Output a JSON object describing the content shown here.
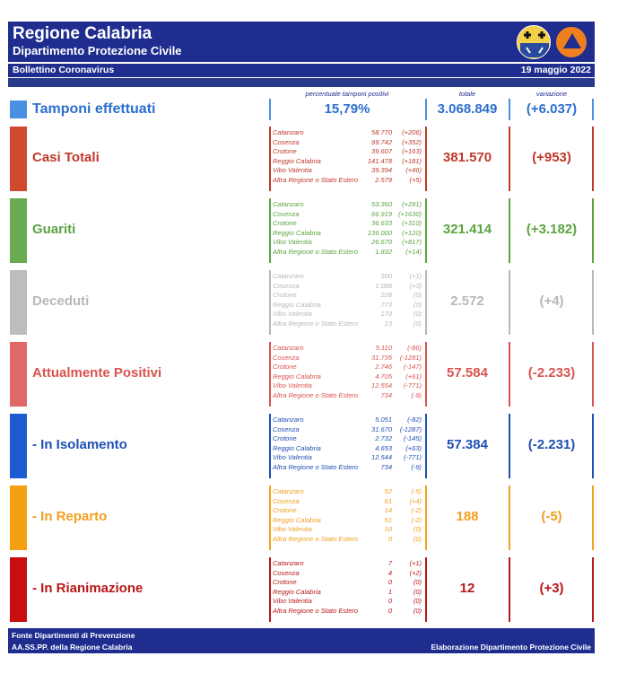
{
  "header": {
    "title": "Regione Calabria",
    "subtitle": "Dipartimento Protezione Civile",
    "bulletin": "Bollettino Coronavirus",
    "date": "19 maggio 2022"
  },
  "columns": {
    "percent_label": "percentuale tamponi positivi",
    "total_label": "totale",
    "delta_label": "variazione"
  },
  "tamponi": {
    "label": "Tamponi effettuati",
    "percent": "15,79%",
    "total": "3.068.849",
    "delta": "(+6.037)",
    "color": "#4a90e2"
  },
  "sections": [
    {
      "label": "Casi Totali",
      "color": "#c0392b",
      "swatch": "#d04a2f",
      "total": "381.570",
      "delta": "(+953)",
      "provinces": [
        {
          "name": "Catanzaro",
          "value": "58.770",
          "delta": "(+206)"
        },
        {
          "name": "Cosenza",
          "value": "99.742",
          "delta": "(+352)"
        },
        {
          "name": "Crotone",
          "value": "39.607",
          "delta": "(+163)"
        },
        {
          "name": "Reggio Calabria",
          "value": "141.478",
          "delta": "(+181)"
        },
        {
          "name": "Vibo Valentia",
          "value": "39.394",
          "delta": "(+46)"
        },
        {
          "name": "Altra Regione o Stato Estero",
          "value": "2.579",
          "delta": "(+5)"
        }
      ]
    },
    {
      "label": "Guariti",
      "color": "#5aa440",
      "swatch": "#6aaa50",
      "total": "321.414",
      "delta": "(+3.182)",
      "provinces": [
        {
          "name": "Catanzaro",
          "value": "53.360",
          "delta": "(+291)"
        },
        {
          "name": "Cosenza",
          "value": "66.919",
          "delta": "(+1630)"
        },
        {
          "name": "Crotone",
          "value": "36.633",
          "delta": "(+310)"
        },
        {
          "name": "Reggio Calabria",
          "value": "136.000",
          "delta": "(+120)"
        },
        {
          "name": "Vibo Valentia",
          "value": "26.670",
          "delta": "(+817)"
        },
        {
          "name": "Altra Regione o Stato Estero",
          "value": "1.832",
          "delta": "(+14)"
        }
      ]
    },
    {
      "label": "Deceduti",
      "color": "#b8b8b8",
      "swatch": "#bdbdbd",
      "total": "2.572",
      "delta": "(+4)",
      "provinces": [
        {
          "name": "Catanzaro",
          "value": "300",
          "delta": "(+1)"
        },
        {
          "name": "Cosenza",
          "value": "1.088",
          "delta": "(+3)"
        },
        {
          "name": "Crotone",
          "value": "228",
          "delta": "(0)"
        },
        {
          "name": "Reggio Calabria",
          "value": "773",
          "delta": "(0)"
        },
        {
          "name": "Vibo Valentia",
          "value": "170",
          "delta": "(0)"
        },
        {
          "name": "Altra Regione o Stato Estero",
          "value": "13",
          "delta": "(0)"
        }
      ]
    },
    {
      "label": "Attualmente Positivi",
      "color": "#d9534f",
      "swatch": "#e06868",
      "total": "57.584",
      "delta": "(-2.233)",
      "provinces": [
        {
          "name": "Catanzaro",
          "value": "5.110",
          "delta": "(-86)"
        },
        {
          "name": "Cosenza",
          "value": "31.735",
          "delta": "(-1281)"
        },
        {
          "name": "Crotone",
          "value": "2.746",
          "delta": "(-147)"
        },
        {
          "name": "Reggio Calabria",
          "value": "4.705",
          "delta": "(+61)"
        },
        {
          "name": "Vibo Valentia",
          "value": "12.554",
          "delta": "(-771)"
        },
        {
          "name": "Altra Regione o Stato Estero",
          "value": "734",
          "delta": "(-9)"
        }
      ]
    },
    {
      "label": "- In Isolamento",
      "color": "#1f4fb5",
      "swatch": "#1c5bd0",
      "total": "57.384",
      "delta": "(-2.231)",
      "provinces": [
        {
          "name": "Catanzaro",
          "value": "5.051",
          "delta": "(-82)"
        },
        {
          "name": "Cosenza",
          "value": "31.670",
          "delta": "(-1287)"
        },
        {
          "name": "Crotone",
          "value": "2.732",
          "delta": "(-145)"
        },
        {
          "name": "Reggio Calabria",
          "value": "4.653",
          "delta": "(+63)"
        },
        {
          "name": "Vibo Valentia",
          "value": "12.544",
          "delta": "(-771)"
        },
        {
          "name": "Altra Regione o Stato Estero",
          "value": "734",
          "delta": "(-9)"
        }
      ]
    },
    {
      "label": "- In Reparto",
      "color": "#f0a020",
      "swatch": "#f5a010",
      "total": "188",
      "delta": "(-5)",
      "provinces": [
        {
          "name": "Catanzaro",
          "value": "52",
          "delta": "(-5)"
        },
        {
          "name": "Cosenza",
          "value": "61",
          "delta": "(+4)"
        },
        {
          "name": "Crotone",
          "value": "14",
          "delta": "(-2)"
        },
        {
          "name": "Reggio Calabria",
          "value": "51",
          "delta": "(-2)"
        },
        {
          "name": "Vibo Valentia",
          "value": "10",
          "delta": "(0)"
        },
        {
          "name": "Altra Regione o Stato Estero",
          "value": "0",
          "delta": "(0)"
        }
      ]
    },
    {
      "label": "- In Rianimazione",
      "color": "#b81818",
      "swatch": "#c80e0e",
      "total": "12",
      "delta": "(+3)",
      "provinces": [
        {
          "name": "Catanzaro",
          "value": "7",
          "delta": "(+1)"
        },
        {
          "name": "Cosenza",
          "value": "4",
          "delta": "(+2)"
        },
        {
          "name": "Crotone",
          "value": "0",
          "delta": "(0)"
        },
        {
          "name": "Reggio Calabria",
          "value": "1",
          "delta": "(0)"
        },
        {
          "name": "Vibo Valentia",
          "value": "0",
          "delta": "(0)"
        },
        {
          "name": "Altra Regione o Stato Estero",
          "value": "0",
          "delta": "(0)"
        }
      ]
    }
  ],
  "footer": {
    "line1": "Fonte Dipartimenti di Prevenzione",
    "line2": "AA.SS.PP.  della Regione Calabria",
    "line3": "Elaborazione Dipartimento Protezione Civile"
  }
}
